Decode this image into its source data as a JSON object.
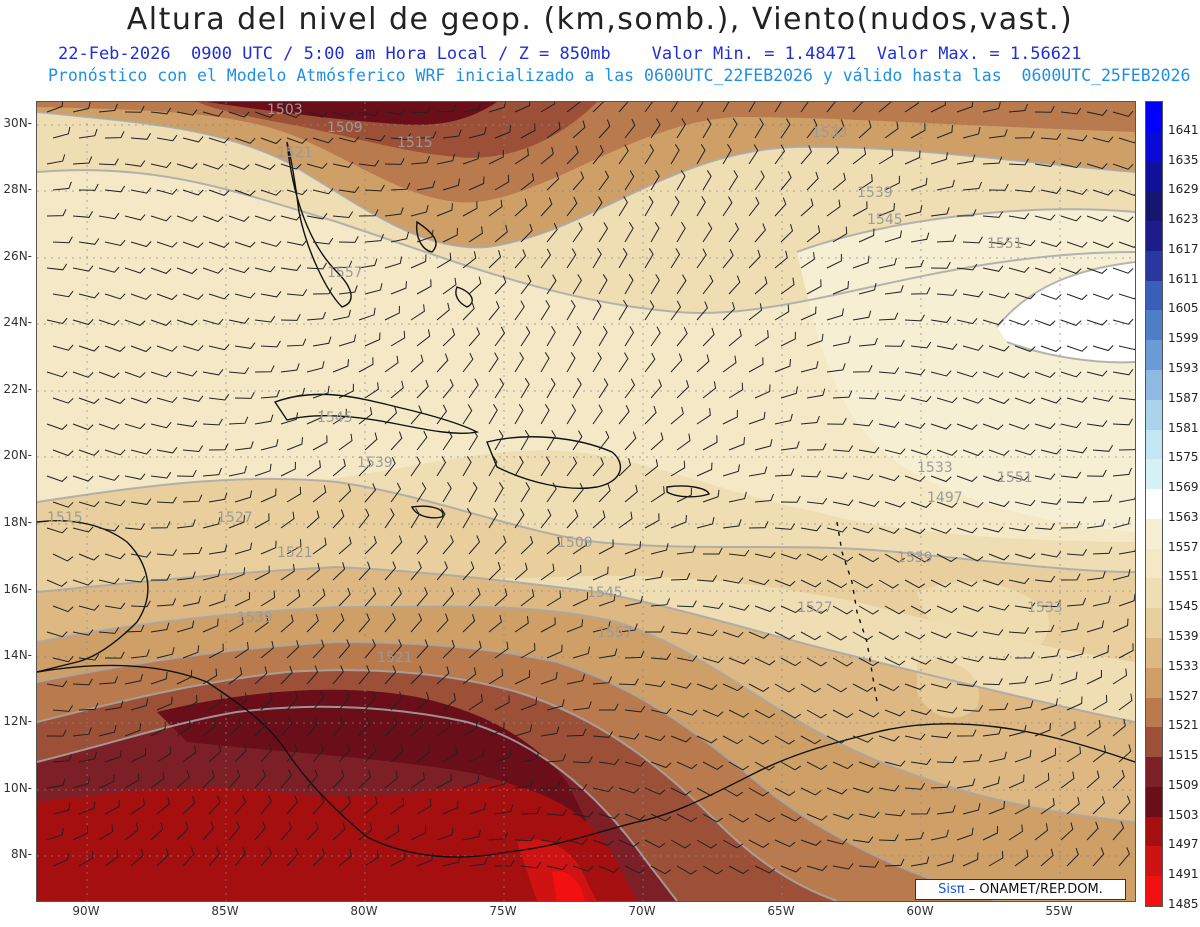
{
  "title": "Altura del nivel de geop. (km,somb.), Viento(nudos,vast.)",
  "subtitle1": "22-Feb-2026  0900 UTC / 5:00 am Hora Local / Z = 850mb    Valor Min. = 1.48471  Valor Max. = 1.56621",
  "subtitle2": "Pronóstico con el Modelo Atmósferico WRF inicializado a las 0600UTC_22FEB2026 y válido hasta las  0600UTC_25FEB2026",
  "lat_labels": [
    "30N",
    "28N",
    "26N",
    "24N",
    "22N",
    "20N",
    "18N",
    "16N",
    "14N",
    "12N",
    "10N",
    "8N"
  ],
  "lon_labels": [
    "90W",
    "85W",
    "80W",
    "75W",
    "70W",
    "65W",
    "60W",
    "55W"
  ],
  "colorbar_labels": [
    "1641",
    "1635",
    "1629",
    "1623",
    "1617",
    "1611",
    "1605",
    "1599",
    "1593",
    "1587",
    "1581",
    "1575",
    "1569",
    "1563",
    "1557",
    "1551",
    "1545",
    "1539",
    "1533",
    "1527",
    "1521",
    "1515",
    "1509",
    "1503",
    "1497",
    "1491",
    "1485"
  ],
  "colorbar_colors": [
    "#0000ff",
    "#0a0ad8",
    "#10109a",
    "#161670",
    "#1c1c8a",
    "#28389f",
    "#3a5fb8",
    "#4f7ec9",
    "#6b9ad6",
    "#8fb8e2",
    "#aad4ee",
    "#c2e6f3",
    "#d5f1f6",
    "#ffffff",
    "#f7efd3",
    "#f4e8c6",
    "#efddb3",
    "#e8cf9d",
    "#ddb882",
    "#cf9f68",
    "#b97a4e",
    "#9c5038",
    "#7d1f26",
    "#6a0f19",
    "#a50f0f",
    "#cf1212",
    "#f21010"
  ],
  "contour_labels": [
    "1503",
    "1509",
    "1515",
    "1521",
    "1533",
    "1539",
    "1545",
    "1551",
    "1557",
    "1545",
    "1539",
    "1527",
    "1521",
    "1515",
    "1509",
    "1497",
    "1533",
    "1539",
    "1551",
    "1545",
    "1557",
    "1527",
    "1533",
    "1539",
    "1521"
  ],
  "credit_prefix": "Sisπ",
  "credit_suffix": "– ONAMET/REP.DOM."
}
